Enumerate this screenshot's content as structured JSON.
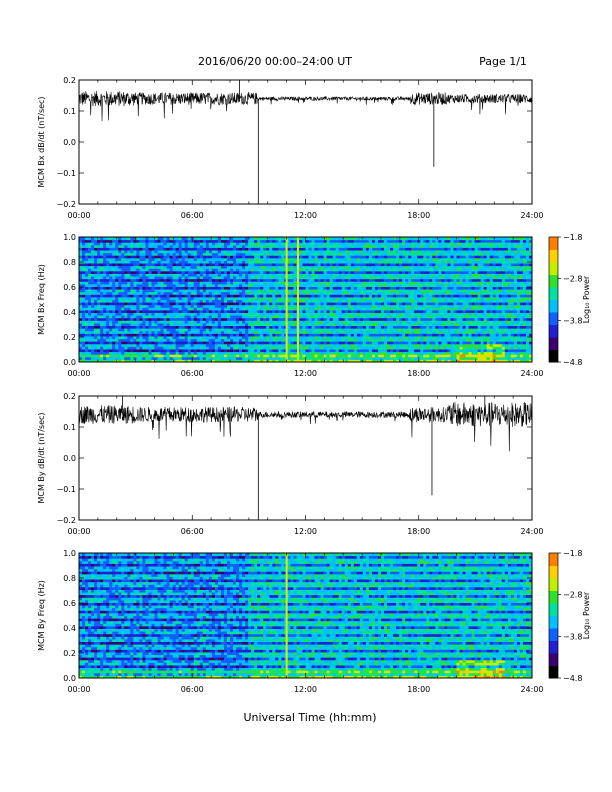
{
  "header": {
    "title": "2016/06/20  00:00–24:00 UT",
    "page": "Page 1/1"
  },
  "footer": {
    "xlabel": "Universal Time (hh:mm)"
  },
  "colors": {
    "trace": "#000000",
    "colormap": [
      "#000000",
      "#3a0070",
      "#2020d0",
      "#1060ff",
      "#00c0ff",
      "#00e0a0",
      "#30e030",
      "#c0f000",
      "#ffd000",
      "#ff8000",
      "#ff0000"
    ]
  },
  "chart_data": [
    {
      "type": "line",
      "ylabel": "MCM Bx dB/dt (nT/sec)",
      "xlim": [
        0,
        24
      ],
      "ylim": [
        -0.2,
        0.2
      ],
      "x_ticks": [
        "00:00",
        "06:00",
        "12:00",
        "18:00",
        "24:00"
      ],
      "y_ticks": [
        "0.2",
        "0.1",
        "0.0",
        "−0.1",
        "−0.2"
      ],
      "baseline": 0.14,
      "noise_segments": [
        {
          "x": [
            0,
            3
          ],
          "amp": 0.025
        },
        {
          "x": [
            3,
            9.5
          ],
          "amp": 0.02
        },
        {
          "x": [
            9.5,
            17.5
          ],
          "amp": 0.006
        },
        {
          "x": [
            17.5,
            19.5
          ],
          "amp": 0.02
        },
        {
          "x": [
            19.5,
            24
          ],
          "amp": 0.015
        }
      ],
      "spikes": [
        {
          "x": 9.5,
          "y": -0.2
        },
        {
          "x": 18.8,
          "y": -0.08
        },
        {
          "x": 8.5,
          "y": 0.2
        }
      ]
    },
    {
      "type": "heatmap",
      "ylabel": "MCM Bx Freq (Hz)",
      "xlim": [
        0,
        24
      ],
      "ylim": [
        0.0,
        1.0
      ],
      "x_ticks": [
        "00:00",
        "06:00",
        "12:00",
        "18:00",
        "24:00"
      ],
      "y_ticks": [
        "1.0",
        "0.8",
        "0.6",
        "0.4",
        "0.2",
        "0.0"
      ],
      "colorbar": {
        "label": "Log₁₀ Power",
        "range": [
          -4.8,
          -1.8
        ],
        "ticks": [
          "−1.8",
          "−2.8",
          "−3.8",
          "−4.8"
        ]
      },
      "bright_columns": [
        11.0,
        11.6
      ],
      "harmonic_spacing_hz": 0.0625
    },
    {
      "type": "line",
      "ylabel": "MCM By dB/dt (nT/sec)",
      "xlim": [
        0,
        24
      ],
      "ylim": [
        -0.2,
        0.2
      ],
      "x_ticks": [
        "00:00",
        "06:00",
        "12:00",
        "18:00",
        "24:00"
      ],
      "y_ticks": [
        "0.2",
        "0.1",
        "0.0",
        "−0.1",
        "−0.2"
      ],
      "baseline": 0.14,
      "noise_segments": [
        {
          "x": [
            0,
            3
          ],
          "amp": 0.03
        },
        {
          "x": [
            3,
            9.5
          ],
          "amp": 0.025
        },
        {
          "x": [
            9.5,
            17.5
          ],
          "amp": 0.01
        },
        {
          "x": [
            17.5,
            19.5
          ],
          "amp": 0.025
        },
        {
          "x": [
            19.5,
            24
          ],
          "amp": 0.04
        }
      ],
      "spikes": [
        {
          "x": 9.5,
          "y": -0.2
        },
        {
          "x": 18.7,
          "y": -0.12
        },
        {
          "x": 2.3,
          "y": 0.2
        },
        {
          "x": 21.5,
          "y": 0.2
        }
      ]
    },
    {
      "type": "heatmap",
      "ylabel": "MCM By Freq (Hz)",
      "xlim": [
        0,
        24
      ],
      "ylim": [
        0.0,
        1.0
      ],
      "x_ticks": [
        "00:00",
        "06:00",
        "12:00",
        "18:00",
        "24:00"
      ],
      "y_ticks": [
        "1.0",
        "0.8",
        "0.6",
        "0.4",
        "0.2",
        "0.0"
      ],
      "colorbar": {
        "label": "Log₁₀ Power",
        "range": [
          -4.8,
          -1.8
        ],
        "ticks": [
          "−1.8",
          "−2.8",
          "−3.8",
          "−4.8"
        ]
      },
      "bright_columns": [
        11.0
      ],
      "harmonic_spacing_hz": 0.0625
    }
  ]
}
